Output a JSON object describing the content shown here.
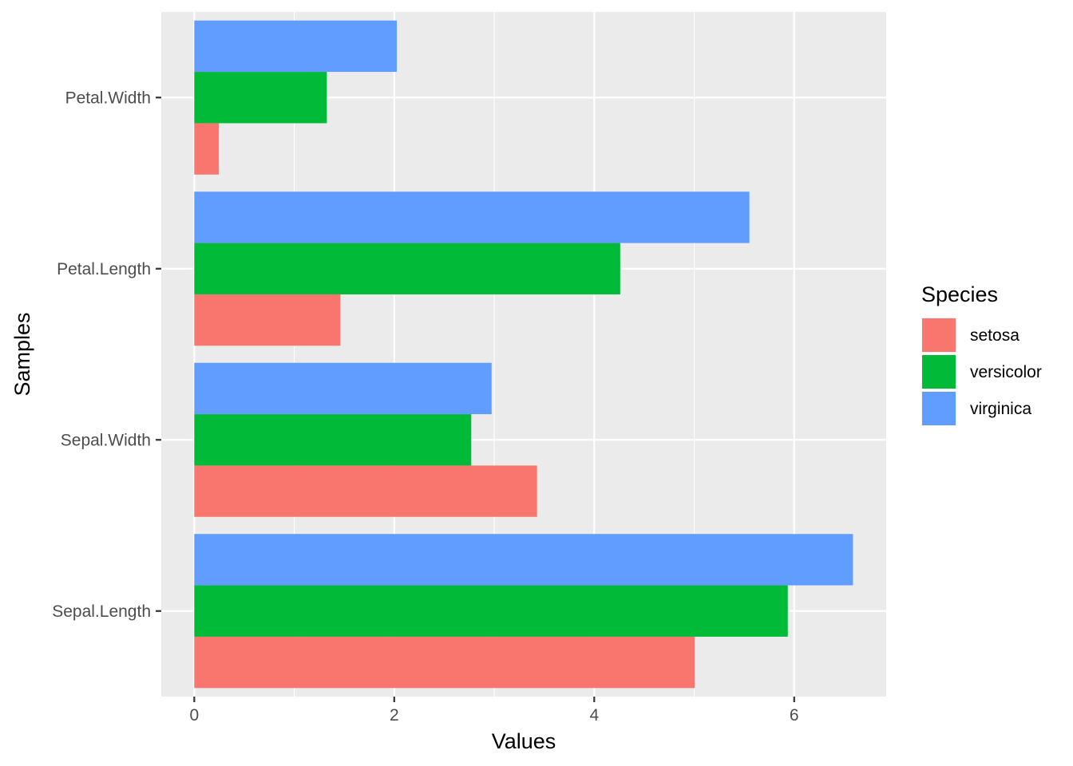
{
  "chart_data": {
    "type": "bar",
    "orientation": "horizontal",
    "categories": [
      "Sepal.Length",
      "Sepal.Width",
      "Petal.Length",
      "Petal.Width"
    ],
    "series": [
      {
        "name": "setosa",
        "color": "#F8766D",
        "values": [
          5.006,
          3.428,
          1.462,
          0.246
        ]
      },
      {
        "name": "versicolor",
        "color": "#00BA38",
        "values": [
          5.936,
          2.77,
          4.26,
          1.326
        ]
      },
      {
        "name": "virginica",
        "color": "#619CFF",
        "values": [
          6.588,
          2.974,
          5.552,
          2.026
        ]
      }
    ],
    "xlabel": "Values",
    "ylabel": "Samples",
    "xlim": [
      -0.33,
      6.92
    ],
    "xticks": [
      0,
      2,
      4,
      6
    ],
    "xtick_labels": [
      "0",
      "2",
      "4",
      "6"
    ],
    "grid": true,
    "panel_background": "#EBEBEB",
    "legend": {
      "title": "Species",
      "position": "right"
    }
  }
}
